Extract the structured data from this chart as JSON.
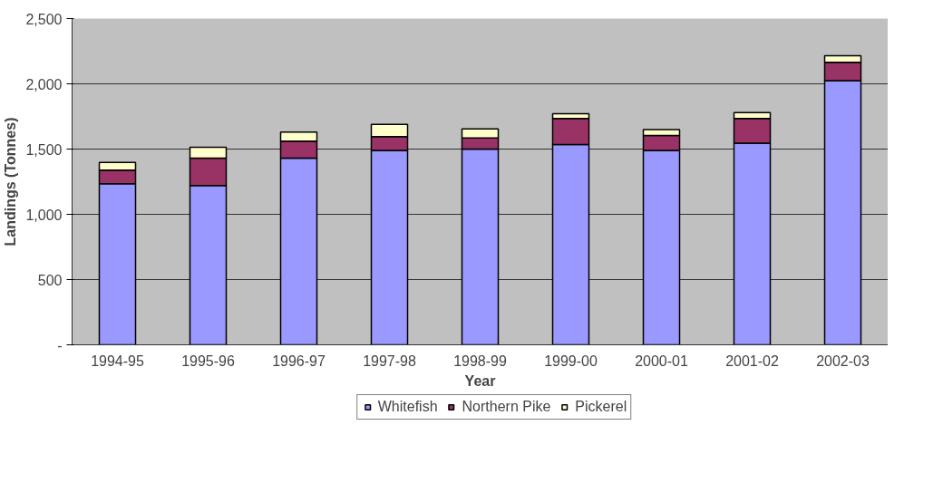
{
  "chart_data": {
    "type": "bar",
    "stacked": true,
    "xlabel": "Year",
    "ylabel": "Landings (Tonnes)",
    "categories": [
      "1994-95",
      "1995-96",
      "1996-97",
      "1997-98",
      "1998-99",
      "1999-00",
      "2000-01",
      "2001-02",
      "2002-03"
    ],
    "series": [
      {
        "name": "Whitefish",
        "color": "#9999ff",
        "values": [
          1235,
          1220,
          1430,
          1490,
          1500,
          1535,
          1490,
          1545,
          2025
        ]
      },
      {
        "name": "Northern Pike",
        "color": "#993366",
        "values": [
          103,
          210,
          130,
          105,
          85,
          200,
          115,
          190,
          140
        ]
      },
      {
        "name": "Pickerel",
        "color": "#ffffcc",
        "values": [
          60,
          84,
          71,
          95,
          70,
          35,
          45,
          45,
          50
        ]
      }
    ],
    "ylim": [
      0,
      2500
    ],
    "yticks": [
      {
        "value": 0,
        "label": "-"
      },
      {
        "value": 500,
        "label": "500"
      },
      {
        "value": 1000,
        "label": "1,000"
      },
      {
        "value": 1500,
        "label": "1,500"
      },
      {
        "value": 2000,
        "label": "2,000"
      },
      {
        "value": 2500,
        "label": "2,500"
      }
    ],
    "grid": "y",
    "legend": "bottom"
  }
}
